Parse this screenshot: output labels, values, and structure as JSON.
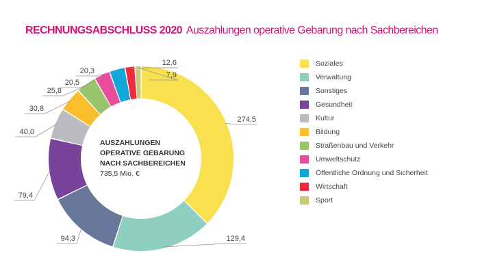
{
  "title": {
    "bold": "RECHNUNGSABSCHLUSS 2020",
    "subtitle": "Auszahlungen operative Gebarung nach Sachbereichen"
  },
  "chart_data": {
    "type": "pie",
    "donut": true,
    "title": "RECHNUNGSABSCHLUSS 2020 Auszahlungen operative Gebarung nach Sachbereichen",
    "center_label": [
      "AUSZAHLUNGEN",
      "OPERATIVE GEBARUNG",
      "NACH SACHBEREICHEN"
    ],
    "center_value": "735,5 Mio. €",
    "legend_position": "right",
    "slices": [
      {
        "name": "Soziales",
        "value": 274.5,
        "label": "274,5",
        "color": "#f9e04f"
      },
      {
        "name": "Verwaltung",
        "value": 129.4,
        "label": "129,4",
        "color": "#8ecfc0"
      },
      {
        "name": "Sonstiges",
        "value": 94.3,
        "label": "94,3",
        "color": "#667799"
      },
      {
        "name": "Gesundheit",
        "value": 79.4,
        "label": "79,4",
        "color": "#774499"
      },
      {
        "name": "Kultur",
        "value": 40.0,
        "label": "40,0",
        "color": "#bbbbc2"
      },
      {
        "name": "Bildung",
        "value": 30.8,
        "label": "30,8",
        "color": "#fbbf2e"
      },
      {
        "name": "Straßenbau und Verkehr",
        "value": 25.8,
        "label": "25,8",
        "color": "#99c46a"
      },
      {
        "name": "Umweltschutz",
        "value": 20.5,
        "label": "20,5",
        "color": "#e84d9b"
      },
      {
        "name": "Öffentliche Ordnung und Sicherheit",
        "value": 20.3,
        "label": "20,3",
        "color": "#11a7d8"
      },
      {
        "name": "Wirtschaft",
        "value": 12.6,
        "label": "12,6",
        "color": "#ef2a3d"
      },
      {
        "name": "Sport",
        "value": 7.9,
        "label": "7,9",
        "color": "#c8c77a"
      }
    ]
  }
}
